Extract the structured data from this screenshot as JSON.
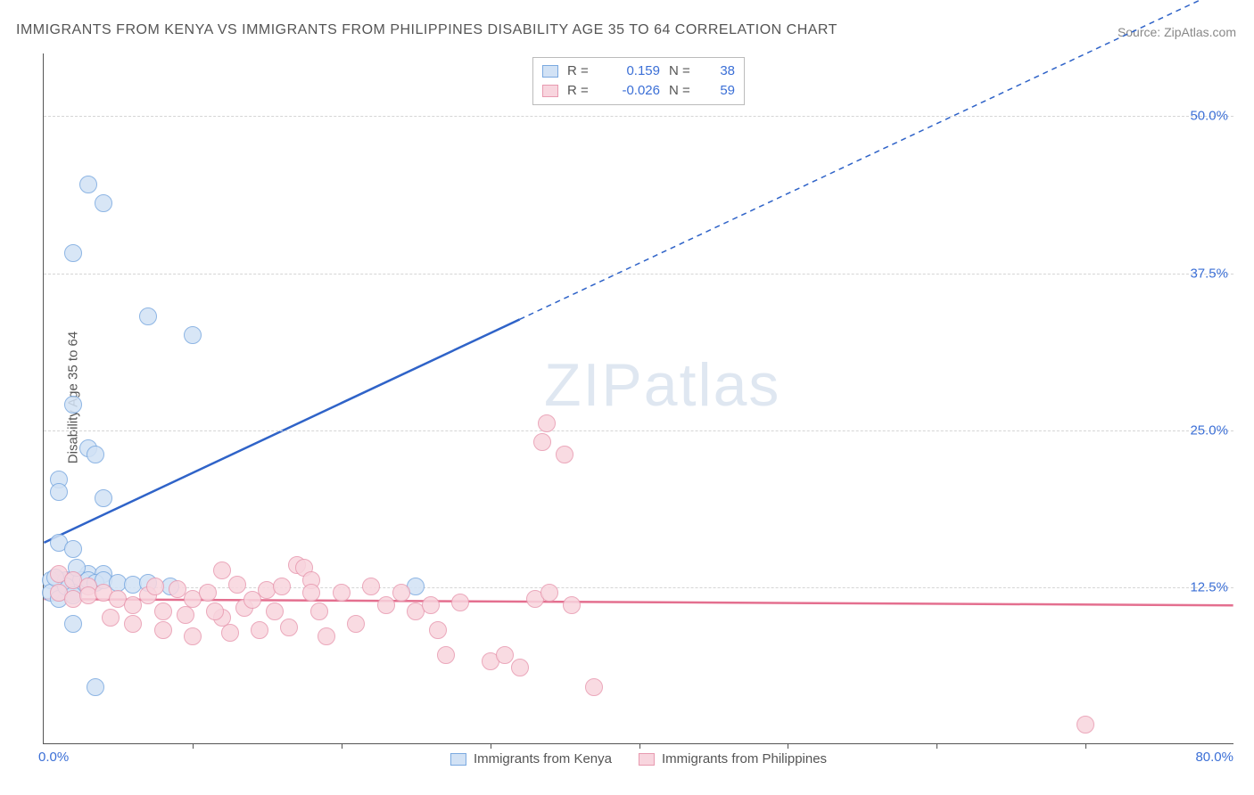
{
  "title": "IMMIGRANTS FROM KENYA VS IMMIGRANTS FROM PHILIPPINES DISABILITY AGE 35 TO 64 CORRELATION CHART",
  "source": "Source: ZipAtlas.com",
  "ylabel": "Disability Age 35 to 64",
  "watermark_a": "ZIP",
  "watermark_b": "atlas",
  "chart": {
    "type": "scatter",
    "xlim": [
      0,
      80
    ],
    "ylim": [
      0,
      55
    ],
    "xticks": [
      10,
      20,
      30,
      40,
      50,
      60,
      70
    ],
    "ygrid": [
      12.5,
      25.0,
      37.5,
      50.0
    ],
    "ytick_labels": [
      "12.5%",
      "25.0%",
      "37.5%",
      "50.0%"
    ],
    "xlabel_min": "0.0%",
    "xlabel_max": "80.0%",
    "background_color": "#ffffff",
    "grid_color": "#d5d5d5",
    "axis_color": "#555555",
    "tick_label_color": "#3b6fd6",
    "point_radius": 10,
    "series": [
      {
        "name": "Immigrants from Kenya",
        "fill": "#d2e2f5",
        "stroke": "#7aa9e0",
        "line_color": "#2f63c8",
        "R": "0.159",
        "N": "38",
        "trend": {
          "y_at_x0": 16.0,
          "y_at_xmax": 60.5,
          "solid_x_end": 32
        },
        "points": [
          [
            3,
            44.5
          ],
          [
            4,
            43
          ],
          [
            2,
            39
          ],
          [
            7,
            34
          ],
          [
            10,
            32.5
          ],
          [
            2,
            27
          ],
          [
            3,
            23.5
          ],
          [
            3.5,
            23
          ],
          [
            1,
            21
          ],
          [
            1,
            20
          ],
          [
            4,
            19.5
          ],
          [
            1,
            16
          ],
          [
            2,
            15.5
          ],
          [
            3,
            13.5
          ],
          [
            4,
            13.5
          ],
          [
            1,
            13
          ],
          [
            0.5,
            13
          ],
          [
            1.5,
            13
          ],
          [
            2,
            13
          ],
          [
            2.5,
            13
          ],
          [
            3,
            13
          ],
          [
            3.5,
            12.8
          ],
          [
            4,
            13
          ],
          [
            5,
            12.8
          ],
          [
            6,
            12.6
          ],
          [
            7,
            12.8
          ],
          [
            8.5,
            12.5
          ],
          [
            1,
            12
          ],
          [
            2,
            12
          ],
          [
            25,
            12.5
          ],
          [
            2,
            9.5
          ],
          [
            3.5,
            4.5
          ],
          [
            0.5,
            12
          ],
          [
            1,
            11.5
          ],
          [
            1.5,
            12.5
          ],
          [
            2,
            11.8
          ],
          [
            0.8,
            13.2
          ],
          [
            2.2,
            14
          ]
        ]
      },
      {
        "name": "Immigrants from Philippines",
        "fill": "#f8d5de",
        "stroke": "#e89ab0",
        "line_color": "#e46f8f",
        "R": "-0.026",
        "N": "59",
        "trend": {
          "y_at_x0": 11.5,
          "y_at_xmax": 11.0,
          "solid_x_end": 80
        },
        "points": [
          [
            1,
            13.5
          ],
          [
            2,
            13
          ],
          [
            3,
            12.5
          ],
          [
            1,
            12
          ],
          [
            2,
            11.5
          ],
          [
            3,
            11.8
          ],
          [
            4,
            12
          ],
          [
            5,
            11.5
          ],
          [
            6,
            11
          ],
          [
            7,
            11.8
          ],
          [
            7.5,
            12.5
          ],
          [
            8,
            10.5
          ],
          [
            9,
            12.3
          ],
          [
            10,
            11.5
          ],
          [
            11,
            12
          ],
          [
            12,
            10
          ],
          [
            13,
            12.6
          ],
          [
            13.5,
            10.8
          ],
          [
            14,
            11.4
          ],
          [
            15,
            12.2
          ],
          [
            15.5,
            10.5
          ],
          [
            16,
            12.5
          ],
          [
            17,
            14.2
          ],
          [
            17.5,
            14
          ],
          [
            18,
            13
          ],
          [
            18.5,
            10.5
          ],
          [
            19,
            8.5
          ],
          [
            20,
            12
          ],
          [
            21,
            9.5
          ],
          [
            22,
            12.5
          ],
          [
            23,
            11
          ],
          [
            24,
            12
          ],
          [
            25,
            10.5
          ],
          [
            26,
            11
          ],
          [
            26.5,
            9
          ],
          [
            27,
            7
          ],
          [
            28,
            11.2
          ],
          [
            30,
            6.5
          ],
          [
            31,
            7
          ],
          [
            32,
            6
          ],
          [
            33,
            11.5
          ],
          [
            33.5,
            24
          ],
          [
            33.8,
            25.5
          ],
          [
            34,
            12
          ],
          [
            35,
            23
          ],
          [
            35.5,
            11
          ],
          [
            37,
            4.5
          ],
          [
            70,
            1.5
          ],
          [
            6,
            9.5
          ],
          [
            8,
            9
          ],
          [
            10,
            8.5
          ],
          [
            12.5,
            8.8
          ],
          [
            14.5,
            9
          ],
          [
            16.5,
            9.2
          ],
          [
            4.5,
            10
          ],
          [
            9.5,
            10.2
          ],
          [
            11.5,
            10.5
          ],
          [
            12,
            13.8
          ],
          [
            18,
            12
          ]
        ]
      }
    ]
  },
  "legend_bottom": [
    {
      "label": "Immigrants from Kenya",
      "fill": "#d2e2f5",
      "stroke": "#7aa9e0"
    },
    {
      "label": "Immigrants from Philippines",
      "fill": "#f8d5de",
      "stroke": "#e89ab0"
    }
  ]
}
